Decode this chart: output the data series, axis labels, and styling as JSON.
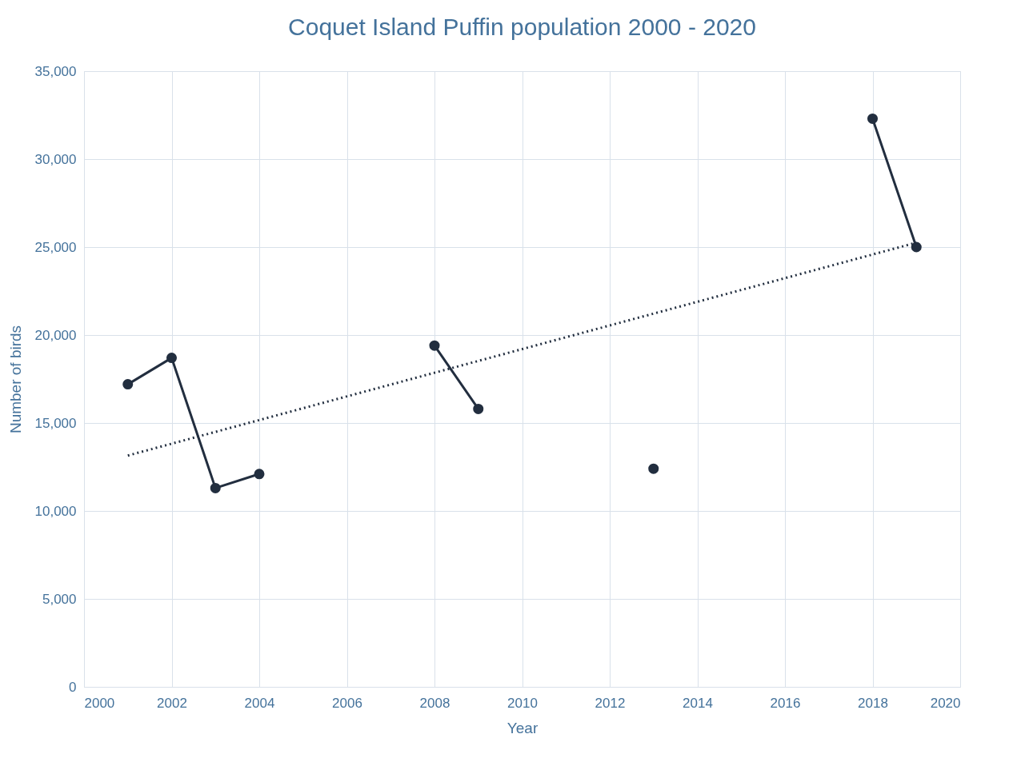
{
  "chart_data": {
    "type": "line",
    "title": "Coquet Island Puffin population 2000 - 2020",
    "xlabel": "Year",
    "ylabel": "Number of birds",
    "x": [
      2001,
      2002,
      2003,
      2004,
      2005,
      2006,
      2007,
      2008,
      2009,
      2010,
      2011,
      2012,
      2013,
      2014,
      2015,
      2016,
      2017,
      2018,
      2019
    ],
    "series": [
      {
        "color": "#222e3f",
        "values": [
          17200,
          18700,
          11300,
          12100,
          null,
          null,
          null,
          19400,
          15800,
          null,
          null,
          null,
          12400,
          null,
          null,
          null,
          null,
          32300,
          25000
        ],
        "marker": "circle",
        "line_style": "solid"
      },
      {
        "type": "line",
        "color": "#222e3f",
        "x": [
          2001,
          2019
        ],
        "values": [
          13150,
          25250
        ],
        "marker": "none",
        "line_style": "dotted"
      }
    ],
    "xlim": [
      2000,
      2020
    ],
    "xticks": [
      2000,
      2002,
      2004,
      2006,
      2008,
      2010,
      2012,
      2014,
      2016,
      2018,
      2020
    ],
    "ylim": [
      0,
      35000
    ],
    "yticks": [
      0,
      {
        "value": 5000,
        "label": "5,000"
      },
      {
        "value": 10000,
        "label": "10,000"
      },
      {
        "value": 15000,
        "label": "15,000"
      },
      {
        "value": 20000,
        "label": "20,000"
      },
      {
        "value": 25000,
        "label": "25,000"
      },
      {
        "value": 30000,
        "label": "30,000"
      },
      {
        "value": 35000,
        "label": "35,000"
      }
    ],
    "grid": true
  }
}
